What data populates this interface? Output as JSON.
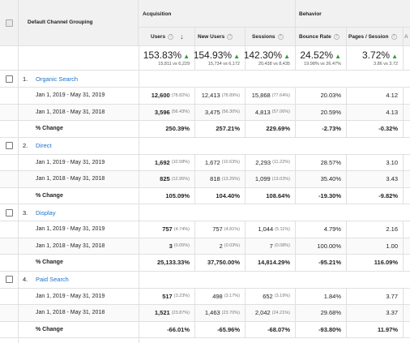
{
  "header": {
    "dimension_label": "Default Channel Grouping",
    "group_acquisition": "Acquisition",
    "group_behavior": "Behavior",
    "columns": {
      "users": "Users",
      "new_users": "New Users",
      "sessions": "Sessions",
      "bounce_rate": "Bounce Rate",
      "pages_session": "Pages / Session"
    },
    "help_glyph": "?",
    "sort_glyph": "↓"
  },
  "totals": {
    "users": {
      "pct": "153.83%",
      "detail": "15,811 vs 6,229"
    },
    "new_users": {
      "pct": "154.93%",
      "detail": "15,734 vs 6,172"
    },
    "sessions": {
      "pct": "142.30%",
      "detail": "20,438 vs 8,435"
    },
    "bounce_rate": {
      "pct": "24.52%",
      "detail": "19.98% vs 26.47%"
    },
    "pages_session": {
      "pct": "3.72%",
      "detail": "3.86 vs 3.72"
    },
    "arrow_glyph": "▲"
  },
  "channels": [
    {
      "rank": "1.",
      "name": "Organic Search",
      "rows": [
        {
          "label": "Jan 1, 2019 - May 31, 2019",
          "users": "12,600",
          "users_share": "(78.82%)",
          "new_users": "12,413",
          "new_users_share": "(78.89%)",
          "sessions": "15,868",
          "sessions_share": "(77.64%)",
          "bounce_rate": "20.03%",
          "pages_session": "4.12"
        },
        {
          "label": "Jan 1, 2018 - May 31, 2018",
          "users": "3,596",
          "users_share": "(56.43%)",
          "new_users": "3,475",
          "new_users_share": "(56.30%)",
          "sessions": "4,813",
          "sessions_share": "(57.06%)",
          "bounce_rate": "20.59%",
          "pages_session": "4.13"
        }
      ],
      "change": {
        "label": "% Change",
        "users": "250.39%",
        "new_users": "257.21%",
        "sessions": "229.69%",
        "bounce_rate": "-2.73%",
        "pages_session": "-0.32%"
      }
    },
    {
      "rank": "2.",
      "name": "Direct",
      "rows": [
        {
          "label": "Jan 1, 2019 - May 31, 2019",
          "users": "1,692",
          "users_share": "(10.58%)",
          "new_users": "1,672",
          "new_users_share": "(10.63%)",
          "sessions": "2,293",
          "sessions_share": "(11.22%)",
          "bounce_rate": "28.57%",
          "pages_session": "3.10"
        },
        {
          "label": "Jan 1, 2018 - May 31, 2018",
          "users": "825",
          "users_share": "(12.95%)",
          "new_users": "818",
          "new_users_share": "(13.25%)",
          "sessions": "1,099",
          "sessions_share": "(13.03%)",
          "bounce_rate": "35.40%",
          "pages_session": "3.43"
        }
      ],
      "change": {
        "label": "% Change",
        "users": "105.09%",
        "new_users": "104.40%",
        "sessions": "108.64%",
        "bounce_rate": "-19.30%",
        "pages_session": "-9.82%"
      }
    },
    {
      "rank": "3.",
      "name": "Display",
      "rows": [
        {
          "label": "Jan 1, 2019 - May 31, 2019",
          "users": "757",
          "users_share": "(4.74%)",
          "new_users": "757",
          "new_users_share": "(4.81%)",
          "sessions": "1,044",
          "sessions_share": "(5.11%)",
          "bounce_rate": "4.79%",
          "pages_session": "2.16"
        },
        {
          "label": "Jan 1, 2018 - May 31, 2018",
          "users": "3",
          "users_share": "(0.05%)",
          "new_users": "2",
          "new_users_share": "(0.03%)",
          "sessions": "7",
          "sessions_share": "(0.08%)",
          "bounce_rate": "100.00%",
          "pages_session": "1.00"
        }
      ],
      "change": {
        "label": "% Change",
        "users": "25,133.33%",
        "new_users": "37,750.00%",
        "sessions": "14,814.29%",
        "bounce_rate": "-95.21%",
        "pages_session": "116.09%"
      }
    },
    {
      "rank": "4.",
      "name": "Paid Search",
      "rows": [
        {
          "label": "Jan 1, 2019 - May 31, 2019",
          "users": "517",
          "users_share": "(3.23%)",
          "new_users": "498",
          "new_users_share": "(3.17%)",
          "sessions": "652",
          "sessions_share": "(3.19%)",
          "bounce_rate": "1.84%",
          "pages_session": "3.77"
        },
        {
          "label": "Jan 1, 2018 - May 31, 2018",
          "users": "1,521",
          "users_share": "(23.87%)",
          "new_users": "1,463",
          "new_users_share": "(23.70%)",
          "sessions": "2,042",
          "sessions_share": "(24.21%)",
          "bounce_rate": "29.68%",
          "pages_session": "3.37"
        }
      ],
      "change": {
        "label": "% Change",
        "users": "-66.01%",
        "new_users": "-65.96%",
        "sessions": "-68.07%",
        "bounce_rate": "-93.80%",
        "pages_session": "11.97%"
      }
    }
  ]
}
